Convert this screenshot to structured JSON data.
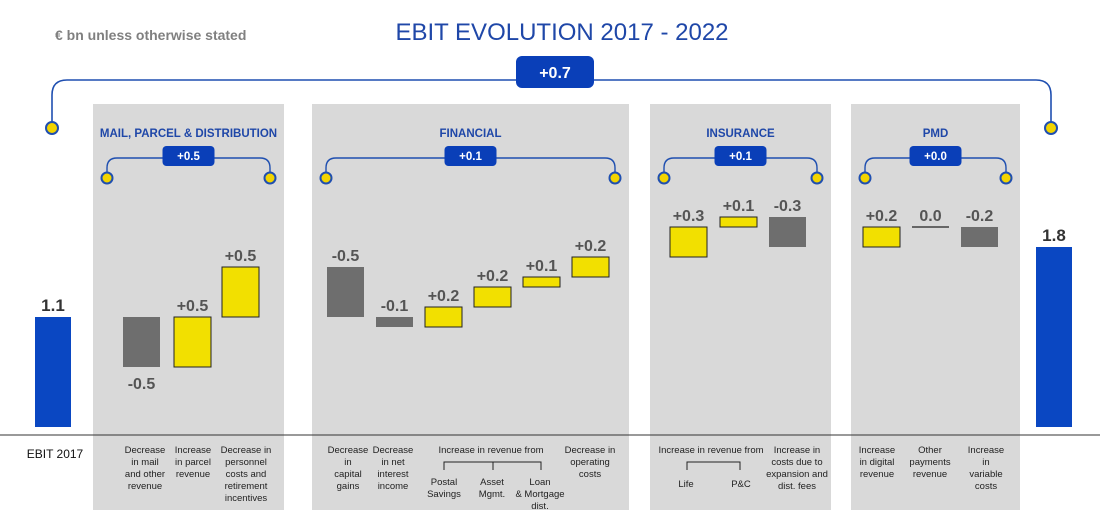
{
  "header": {
    "title": "EBIT EVOLUTION 2017 - 2022",
    "units_note": "€ bn unless otherwise stated",
    "total_badge": "+0.7"
  },
  "colors": {
    "title": "#1f47a8",
    "badge": "#0a3fb8",
    "badge_text": "#ffffff",
    "bracket": "#1f4fb0",
    "dot_fill": "#f2d400",
    "panel": "#d9d9d9",
    "total_bar": "#0a47c2",
    "positive_bar": "#f2e000",
    "negative_bar": "#6e6e6e",
    "value_dark": "#555555",
    "value_light": "#333333"
  },
  "chart_data": {
    "type": "waterfall",
    "unit": "€ bn",
    "start": {
      "label": "EBIT 2017",
      "value": 1.1,
      "value_label": "1.1"
    },
    "end": {
      "label": "",
      "value": 1.8,
      "value_label": "1.8"
    },
    "segments": [
      {
        "name": "MAIL, PARCEL & DISTRIBUTION",
        "subtotal": "+0.5",
        "steps": [
          {
            "label": "Decrease in mail and other revenue",
            "value": -0.5,
            "value_label": "-0.5"
          },
          {
            "label": "Increase in parcel revenue",
            "value": 0.5,
            "value_label": "+0.5"
          },
          {
            "label": "Decrease in personnel costs and retirement incentives",
            "value": 0.5,
            "value_label": "+0.5"
          }
        ]
      },
      {
        "name": "FINANCIAL",
        "subtotal": "+0.1",
        "group_label": "Increase in revenue  from",
        "steps": [
          {
            "label": "Decrease in capital gains",
            "value": -0.5,
            "value_label": "-0.5"
          },
          {
            "label": "Decrease in net interest income",
            "value": -0.1,
            "value_label": "-0.1"
          },
          {
            "label": "Postal Savings",
            "value": 0.2,
            "value_label": "+0.2"
          },
          {
            "label": "Asset Mgmt.",
            "value": 0.2,
            "value_label": "+0.2"
          },
          {
            "label": "Loan & Mortgage dist.",
            "value": 0.1,
            "value_label": "+0.1"
          },
          {
            "label": "Decrease in operating costs",
            "value": 0.2,
            "value_label": "+0.2"
          }
        ]
      },
      {
        "name": "INSURANCE",
        "subtotal": "+0.1",
        "group_label": "Increase in revenue  from",
        "steps": [
          {
            "label": "Life",
            "value": 0.3,
            "value_label": "+0.3"
          },
          {
            "label": "P&C",
            "value": 0.1,
            "value_label": "+0.1"
          },
          {
            "label": "Increase in costs due to expansion and dist. fees",
            "value": -0.3,
            "value_label": "-0.3"
          }
        ]
      },
      {
        "name": "PMD",
        "subtotal": "+0.0",
        "steps": [
          {
            "label": "Increase in digital revenue",
            "value": 0.2,
            "value_label": "+0.2"
          },
          {
            "label": "Other payments revenue",
            "value": 0.0,
            "value_label": "0.0"
          },
          {
            "label": "Increase in variable costs",
            "value": -0.2,
            "value_label": "-0.2"
          }
        ]
      }
    ]
  }
}
